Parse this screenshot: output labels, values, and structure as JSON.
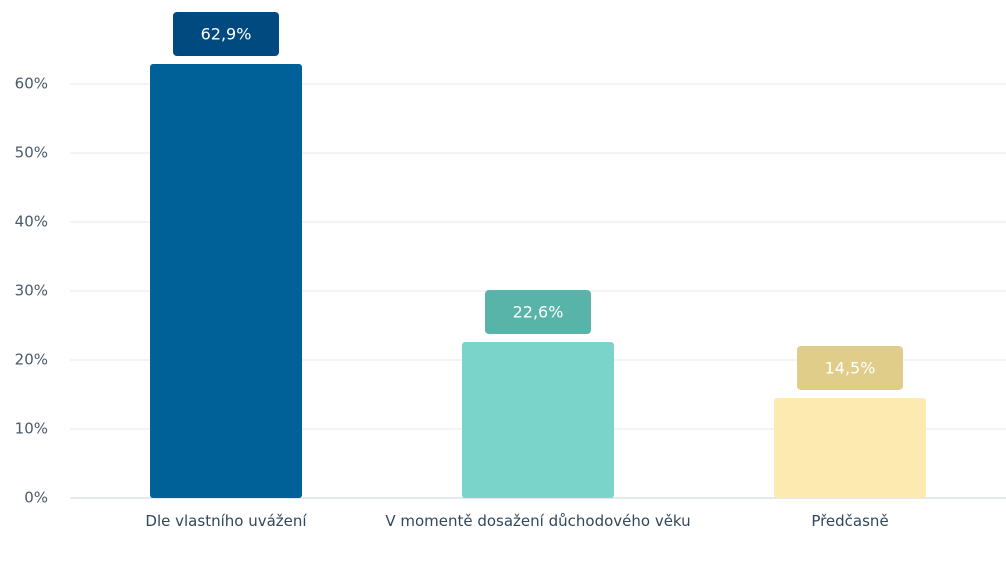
{
  "chart_data": {
    "type": "bar",
    "categories": [
      "Dle vlastního uvážení",
      "V momentě dosažení důchodového věku",
      "Předčasně"
    ],
    "values": [
      62.9,
      22.6,
      14.5
    ],
    "value_labels": [
      "62,9%",
      "22,6%",
      "14,5%"
    ],
    "colors": [
      "#006199",
      "#7ad4c9",
      "#fdeab0"
    ],
    "label_colors": [
      "#004a80",
      "#58b3a8",
      "#e0cd8a"
    ],
    "ylim": [
      0,
      70
    ],
    "yticks": [
      {
        "value": 0,
        "label": "0%"
      },
      {
        "value": 10,
        "label": "10%"
      },
      {
        "value": 20,
        "label": "20%"
      },
      {
        "value": 30,
        "label": "30%"
      },
      {
        "value": 40,
        "label": "40%"
      },
      {
        "value": 50,
        "label": "50%"
      },
      {
        "value": 60,
        "label": "60%"
      }
    ],
    "grid": true
  }
}
